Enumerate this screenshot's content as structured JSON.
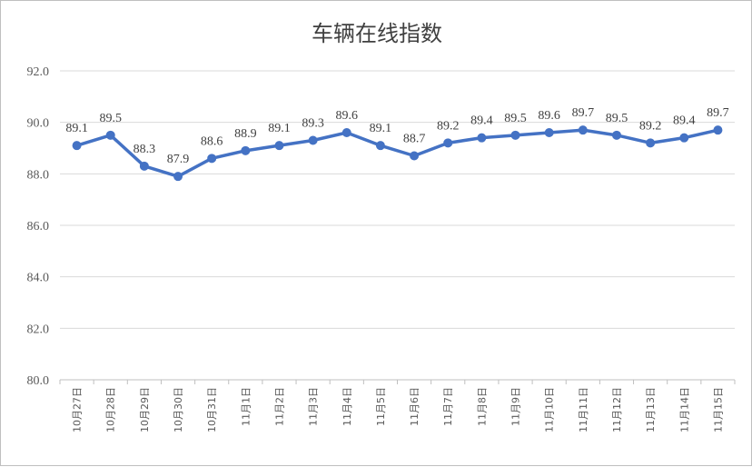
{
  "chart_data": {
    "type": "line",
    "title": "车辆在线指数",
    "xlabel": "",
    "ylabel": "",
    "ylim": [
      80.0,
      92.0
    ],
    "yticks": [
      "80.0",
      "82.0",
      "84.0",
      "86.0",
      "88.0",
      "90.0",
      "92.0"
    ],
    "grid": true,
    "legend": "none",
    "categories": [
      "10月27日",
      "10月28日",
      "10月29日",
      "10月30日",
      "10月31日",
      "11月1日",
      "11月2日",
      "11月3日",
      "11月4日",
      "11月5日",
      "11月6日",
      "11月7日",
      "11月8日",
      "11月9日",
      "11月10日",
      "11月11日",
      "11月12日",
      "11月13日",
      "11月14日",
      "11月15日"
    ],
    "series": [
      {
        "values": [
          89.1,
          89.5,
          88.3,
          87.9,
          88.6,
          88.9,
          89.1,
          89.3,
          89.6,
          89.1,
          88.7,
          89.2,
          89.4,
          89.5,
          89.6,
          89.7,
          89.5,
          89.2,
          89.4,
          89.7
        ],
        "labels": [
          "89.1",
          "89.5",
          "88.3",
          "87.9",
          "88.6",
          "88.9",
          "89.1",
          "89.3",
          "89.6",
          "89.1",
          "88.7",
          "89.2",
          "89.4",
          "89.5",
          "89.6",
          "89.7",
          "89.5",
          "89.2",
          "89.4",
          "89.7"
        ],
        "color": "#4472c4"
      }
    ]
  }
}
